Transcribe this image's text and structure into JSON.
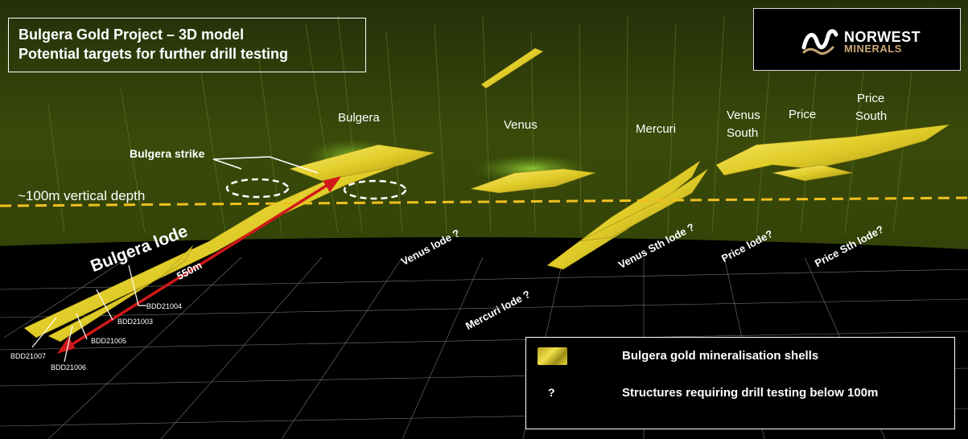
{
  "title": {
    "line1": "Bulgera Gold Project – 3D model",
    "line2": "Potential targets for further drill testing"
  },
  "logo": {
    "name": "NORWEST",
    "sub": "MINERALS",
    "icon": "norwest-wave-logo-icon"
  },
  "deposits": {
    "bulgera": "Bulgera",
    "venus": "Venus",
    "mercuri": "Mercuri",
    "venus_south_1": "Venus",
    "venus_south_2": "South",
    "price": "Price",
    "price_south_1": "Price",
    "price_south_2": "South"
  },
  "annotations": {
    "strike": "Bulgera strike",
    "depth": "~100m vertical depth",
    "lode": "Bulgera lode",
    "length": "550m"
  },
  "lodes": {
    "venus": "Venus lode ?",
    "mercuri": "Mercuri lode ?",
    "venus_sth": "Venus Sth lode ?",
    "price": "Price lode?",
    "price_sth": "Price Sth lode?"
  },
  "drillholes": {
    "bdd21004": "BDD21004",
    "bdd21003": "BDD21003",
    "bdd21005": "BDD21005",
    "bdd21007": "BDD21007",
    "bdd21006": "BDD21006"
  },
  "legend": {
    "shells": "Bulgera gold mineralisation shells",
    "q": "?",
    "structures": "Structures requiring drill testing below 100m"
  },
  "colors": {
    "surface_band": "#2f3d06",
    "shell_gold": "#e6d42c",
    "depth_line": "#f0c020",
    "arrow_red": "#d01818",
    "grid": "#d8d8d8"
  }
}
